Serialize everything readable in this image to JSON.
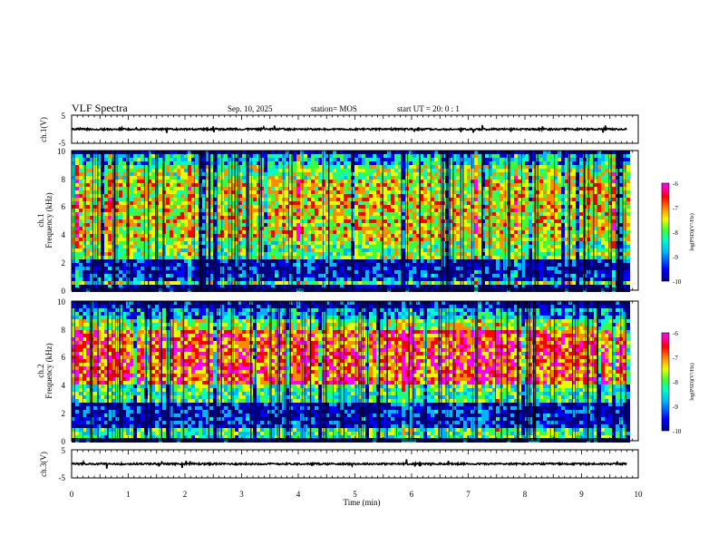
{
  "header": {
    "title": "VLF Spectra",
    "date": "Sep. 10, 2025",
    "station": "station= MOS",
    "start": "start  UT =  20: 0  : 1"
  },
  "chart_data": [
    {
      "type": "line",
      "panel": "ch1-waveform",
      "ylabel": "ch.1(V)",
      "ylim": [
        -5,
        5
      ],
      "yticks": [
        "5",
        "-5"
      ],
      "xlim": [
        0,
        10
      ],
      "series": [
        {
          "name": "ch.1 waveform",
          "approx_level": 0
        }
      ]
    },
    {
      "type": "heatmap",
      "panel": "ch1-spectrogram",
      "ylabel_channel": "ch.1",
      "ylabel": "Frequency (kHz)",
      "ylim": [
        0,
        10
      ],
      "yticks": [
        "0",
        "2",
        "4",
        "6",
        "8",
        "10"
      ],
      "xlim": [
        0,
        10
      ],
      "colorbar": {
        "label": "log(PSD)(V²/Hz)",
        "range": [
          -10,
          -6
        ],
        "ticks": [
          "-6",
          "-7",
          "-8",
          "-9",
          "-10"
        ]
      },
      "bands": [
        {
          "from_khz": 0.0,
          "to_khz": 0.3,
          "level": -9.8
        },
        {
          "from_khz": 0.3,
          "to_khz": 0.6,
          "level": -8.0
        },
        {
          "from_khz": 0.6,
          "to_khz": 1.2,
          "level": -9.3
        },
        {
          "from_khz": 1.2,
          "to_khz": 2.3,
          "level": -9.6
        },
        {
          "from_khz": 2.3,
          "to_khz": 3.5,
          "level": -8.0
        },
        {
          "from_khz": 3.5,
          "to_khz": 8.0,
          "level": -7.5
        },
        {
          "from_khz": 8.0,
          "to_khz": 9.0,
          "level": -7.9
        },
        {
          "from_khz": 9.0,
          "to_khz": 9.7,
          "level": -8.6
        },
        {
          "from_khz": 9.7,
          "to_khz": 10.0,
          "level": -9.8
        }
      ]
    },
    {
      "type": "heatmap",
      "panel": "ch2-spectrogram",
      "ylabel_channel": "ch.2",
      "ylabel": "Frequency (kHz)",
      "ylim": [
        0,
        10
      ],
      "yticks": [
        "0",
        "2",
        "4",
        "6",
        "8",
        "10"
      ],
      "xlim": [
        0,
        10
      ],
      "colorbar": {
        "label": "log(PSD)(V²/Hz)",
        "range": [
          -10,
          -6
        ],
        "ticks": [
          "-6",
          "-7",
          "-8",
          "-9",
          "-10"
        ]
      },
      "bands": [
        {
          "from_khz": 0.0,
          "to_khz": 0.2,
          "level": -9.8
        },
        {
          "from_khz": 0.2,
          "to_khz": 1.0,
          "level": -8.3
        },
        {
          "from_khz": 1.0,
          "to_khz": 2.6,
          "level": -9.5
        },
        {
          "from_khz": 2.6,
          "to_khz": 4.0,
          "level": -8.2
        },
        {
          "from_khz": 4.0,
          "to_khz": 7.8,
          "level": -6.9
        },
        {
          "from_khz": 7.8,
          "to_khz": 8.8,
          "level": -7.8
        },
        {
          "from_khz": 8.8,
          "to_khz": 9.5,
          "level": -8.8
        },
        {
          "from_khz": 9.5,
          "to_khz": 10.0,
          "level": -9.7
        }
      ]
    },
    {
      "type": "line",
      "panel": "ch3-waveform",
      "ylabel": "ch.3(V)",
      "ylim": [
        -5,
        5
      ],
      "yticks": [
        "5",
        "-5"
      ],
      "xlim": [
        0,
        10
      ],
      "series": [
        {
          "name": "ch.3 waveform",
          "approx_level": 0
        }
      ]
    }
  ],
  "xaxis": {
    "label": "Time  (min)",
    "ticks": [
      "0",
      "1",
      "2",
      "3",
      "4",
      "5",
      "6",
      "7",
      "8",
      "9",
      "10"
    ],
    "data_end_min": 9.8
  },
  "colors": {
    "colormap": [
      "#00007f",
      "#0000ff",
      "#00b4ff",
      "#00ffc8",
      "#3cff3c",
      "#e6ff00",
      "#ff8c00",
      "#ff0000",
      "#ff00ff"
    ]
  }
}
